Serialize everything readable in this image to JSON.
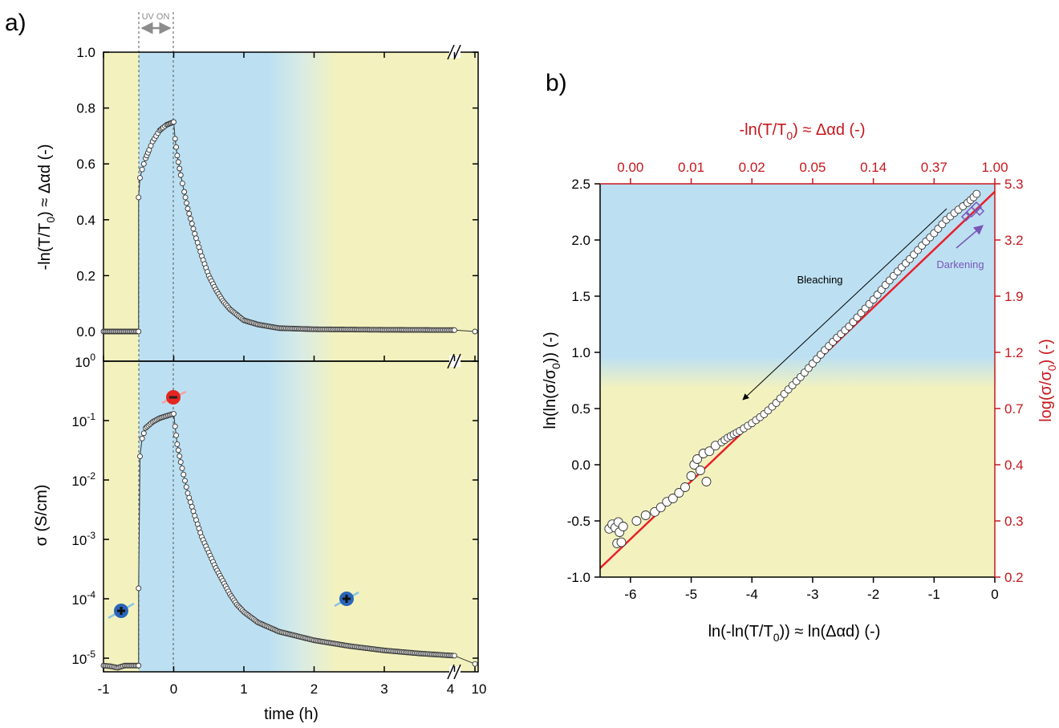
{
  "colors": {
    "yellow_bg": "#f3f2bf",
    "blue_bg": "#bce0f2",
    "fit_red": "#e8202a",
    "red_axis": "#c8171c",
    "purple": "#7a55b8",
    "grey": "#8c8c8c",
    "marker_fill": "#ffffff",
    "marker_edge": "#333333",
    "hole_blue": "#2a65b8",
    "electron_red": "#e52521"
  },
  "panel_a": {
    "label": "a)",
    "uv_label": "UV ON",
    "xlabel": "time (h)",
    "top_ylabel": "-ln(T/T",
    "top_ylabel_sub": "0",
    "top_ylabel_tail": ") ≈ Δαd  (-)",
    "bottom_ylabel": "σ (S/cm)",
    "xticks": [
      "-1",
      "0",
      "1",
      "2",
      "3",
      "4",
      "10"
    ],
    "top_yticks": [
      "0.0",
      "0.2",
      "0.4",
      "0.6",
      "0.8",
      "1.0"
    ],
    "bottom_yticks": [
      {
        "base": "10",
        "exp": "-5"
      },
      {
        "base": "10",
        "exp": "-4"
      },
      {
        "base": "10",
        "exp": "-3"
      },
      {
        "base": "10",
        "exp": "-2"
      },
      {
        "base": "10",
        "exp": "-1"
      },
      {
        "base": "10",
        "exp": "0"
      }
    ]
  },
  "panel_b": {
    "label": "b)",
    "xlabel": "ln(-ln(T/T",
    "xlabel_sub": "0",
    "xlabel_tail": ")) ≈ ln(Δαd)   (-)",
    "ylabel": "ln(ln(σ/σ",
    "ylabel_sub": "0",
    "ylabel_tail": "))   (-)",
    "top_xlabel": "-ln(T/T",
    "top_xlabel_sub": "0",
    "top_xlabel_tail": ") ≈ Δαd   (-)",
    "right_ylabel": "log(σ/σ",
    "right_ylabel_sub": "0",
    "right_ylabel_tail": ")   (-)",
    "bleaching_label": "Bleaching",
    "darkening_label": "Darkening",
    "xticks": [
      "-6",
      "-5",
      "-4",
      "-3",
      "-2",
      "-1",
      "0"
    ],
    "yticks": [
      "-1.0",
      "-0.5",
      "0.0",
      "0.5",
      "1.0",
      "1.5",
      "2.0",
      "2.5"
    ],
    "top_xticks": [
      "0.00",
      "0.01",
      "0.02",
      "0.05",
      "0.14",
      "0.37",
      "1.00"
    ],
    "right_yticks": [
      "0.2",
      "0.3",
      "0.4",
      "0.7",
      "1.2",
      "1.9",
      "3.2",
      "5.3"
    ]
  },
  "chart_data": [
    {
      "type": "scatter",
      "panel": "a-top",
      "xlabel": "time (h)",
      "ylabel": "-ln(T/T0) ≈ Δαd  (-)",
      "xlim": [
        -1,
        10
      ],
      "axis_break": [
        4,
        10
      ],
      "ylim": [
        0,
        1.0
      ],
      "uv_on_interval": [
        -0.5,
        0
      ],
      "points": [
        [
          -1.0,
          0.0
        ],
        [
          -0.75,
          0.0
        ],
        [
          -0.5,
          0.0
        ],
        [
          -0.5,
          0.48
        ],
        [
          -0.48,
          0.55
        ],
        [
          -0.45,
          0.58
        ],
        [
          -0.4,
          0.62
        ],
        [
          -0.35,
          0.65
        ],
        [
          -0.3,
          0.68
        ],
        [
          -0.25,
          0.7
        ],
        [
          -0.2,
          0.72
        ],
        [
          -0.15,
          0.73
        ],
        [
          -0.1,
          0.74
        ],
        [
          -0.05,
          0.745
        ],
        [
          0.0,
          0.75
        ],
        [
          0.02,
          0.69
        ],
        [
          0.05,
          0.63
        ],
        [
          0.1,
          0.56
        ],
        [
          0.15,
          0.5
        ],
        [
          0.2,
          0.44
        ],
        [
          0.3,
          0.35
        ],
        [
          0.4,
          0.27
        ],
        [
          0.5,
          0.2
        ],
        [
          0.6,
          0.15
        ],
        [
          0.7,
          0.11
        ],
        [
          0.8,
          0.08
        ],
        [
          0.9,
          0.06
        ],
        [
          1.0,
          0.04
        ],
        [
          1.2,
          0.025
        ],
        [
          1.5,
          0.012
        ],
        [
          2.0,
          0.008
        ],
        [
          3.0,
          0.006
        ],
        [
          4.0,
          0.005
        ],
        [
          10.0,
          0.0
        ]
      ]
    },
    {
      "type": "scatter",
      "panel": "a-bottom",
      "xlabel": "time (h)",
      "ylabel": "σ (S/cm)",
      "yscale": "log",
      "xlim": [
        -1,
        10
      ],
      "axis_break": [
        4,
        10
      ],
      "ylim": [
        2e-06,
        2
      ],
      "points": [
        [
          -1.0,
          7.5e-06
        ],
        [
          -0.9,
          7.3e-06
        ],
        [
          -0.8,
          6.9e-06
        ],
        [
          -0.7,
          7.5e-06
        ],
        [
          -0.6,
          7.5e-06
        ],
        [
          -0.5,
          7.5e-06
        ],
        [
          -0.5,
          0.00015
        ],
        [
          -0.48,
          0.025
        ],
        [
          -0.45,
          0.05
        ],
        [
          -0.4,
          0.075
        ],
        [
          -0.3,
          0.095
        ],
        [
          -0.2,
          0.11
        ],
        [
          -0.1,
          0.12
        ],
        [
          0.0,
          0.13
        ],
        [
          0.02,
          0.08
        ],
        [
          0.05,
          0.04
        ],
        [
          0.1,
          0.02
        ],
        [
          0.2,
          0.006
        ],
        [
          0.3,
          0.0025
        ],
        [
          0.4,
          0.0011
        ],
        [
          0.5,
          0.0006
        ],
        [
          0.6,
          0.00033
        ],
        [
          0.7,
          0.0002
        ],
        [
          0.8,
          0.00012
        ],
        [
          0.9,
          8e-05
        ],
        [
          1.0,
          6e-05
        ],
        [
          1.2,
          4e-05
        ],
        [
          1.5,
          2.8e-05
        ],
        [
          2.0,
          2e-05
        ],
        [
          2.5,
          1.6e-05
        ],
        [
          3.0,
          1.35e-05
        ],
        [
          3.5,
          1.2e-05
        ],
        [
          4.0,
          1.1e-05
        ],
        [
          10.0,
          8e-06
        ]
      ]
    },
    {
      "type": "scatter",
      "panel": "b",
      "xlabel": "ln(-ln(T/T0)) ≈ ln(Δαd)   (-)",
      "ylabel": "ln(ln(σ/σ0))   (-)",
      "xlim": [
        -6.5,
        0
      ],
      "ylim": [
        -1.0,
        2.5
      ],
      "points": [
        [
          -6.35,
          -0.57
        ],
        [
          -6.3,
          -0.53
        ],
        [
          -6.25,
          -0.56
        ],
        [
          -6.2,
          -0.51
        ],
        [
          -6.18,
          -0.6
        ],
        [
          -6.22,
          -0.7
        ],
        [
          -6.15,
          -0.69
        ],
        [
          -6.12,
          -0.55
        ],
        [
          -5.9,
          -0.5
        ],
        [
          -5.75,
          -0.45
        ],
        [
          -5.6,
          -0.42
        ],
        [
          -5.5,
          -0.38
        ],
        [
          -5.4,
          -0.33
        ],
        [
          -5.3,
          -0.3
        ],
        [
          -5.2,
          -0.25
        ],
        [
          -5.1,
          -0.2
        ],
        [
          -5.0,
          -0.1
        ],
        [
          -4.95,
          0.0
        ],
        [
          -4.9,
          0.05
        ],
        [
          -4.85,
          -0.05
        ],
        [
          -4.8,
          0.1
        ],
        [
          -4.75,
          -0.15
        ],
        [
          -4.7,
          0.12
        ],
        [
          -4.6,
          0.17
        ],
        [
          -4.5,
          0.2
        ],
        [
          -4.4,
          0.24
        ],
        [
          -4.3,
          0.27
        ],
        [
          -4.2,
          0.3
        ],
        [
          -4.0,
          0.37
        ],
        [
          -3.8,
          0.45
        ],
        [
          -3.6,
          0.55
        ],
        [
          -3.4,
          0.67
        ],
        [
          -3.2,
          0.78
        ],
        [
          -3.0,
          0.9
        ],
        [
          -2.8,
          1.02
        ],
        [
          -2.6,
          1.13
        ],
        [
          -2.4,
          1.23
        ],
        [
          -2.2,
          1.35
        ],
        [
          -2.0,
          1.47
        ],
        [
          -1.8,
          1.6
        ],
        [
          -1.6,
          1.72
        ],
        [
          -1.4,
          1.83
        ],
        [
          -1.2,
          1.95
        ],
        [
          -1.0,
          2.06
        ],
        [
          -0.8,
          2.18
        ],
        [
          -0.6,
          2.27
        ],
        [
          -0.45,
          2.33
        ],
        [
          -0.35,
          2.38
        ],
        [
          -0.3,
          2.41
        ]
      ],
      "fit_line": [
        [
          -6.5,
          -0.92
        ],
        [
          0,
          2.43
        ]
      ],
      "annotations": [
        "Bleaching",
        "Darkening"
      ]
    }
  ]
}
